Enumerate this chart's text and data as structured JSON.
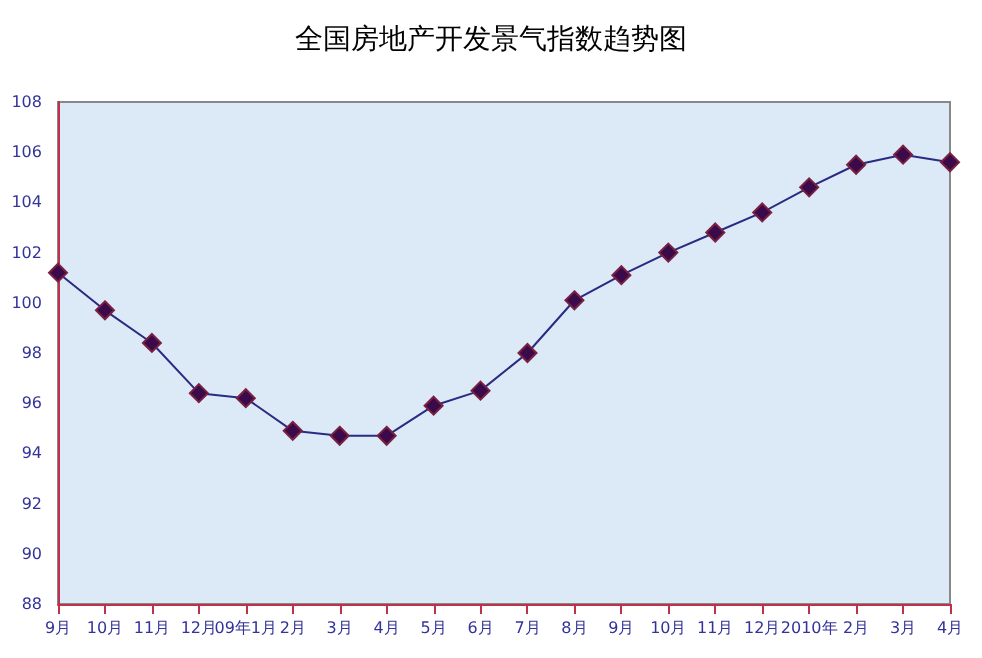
{
  "chart_data": {
    "type": "line",
    "title": "全国房地产开发景气指数趋势图",
    "categories": [
      "9月",
      "10月",
      "11月",
      "12月",
      "09年1月",
      "2月",
      "3月",
      "4月",
      "5月",
      "6月",
      "7月",
      "8月",
      "9月",
      "10月",
      "11月",
      "12月",
      "2010年",
      "2月",
      "3月",
      "4月"
    ],
    "series": [
      {
        "color": "#2a2a80",
        "values": [
          101.2,
          99.7,
          98.4,
          96.4,
          96.2,
          94.9,
          94.7,
          94.7,
          95.9,
          96.5,
          98.0,
          100.1,
          101.1,
          102.0,
          102.8,
          103.6,
          104.6,
          105.5,
          105.9,
          105.6
        ]
      }
    ],
    "ylim": [
      88,
      108
    ],
    "yticks": [
      88,
      90,
      92,
      94,
      96,
      98,
      100,
      102,
      104,
      106,
      108
    ],
    "grid": false,
    "marker": "diamond",
    "line_style": "solid"
  }
}
